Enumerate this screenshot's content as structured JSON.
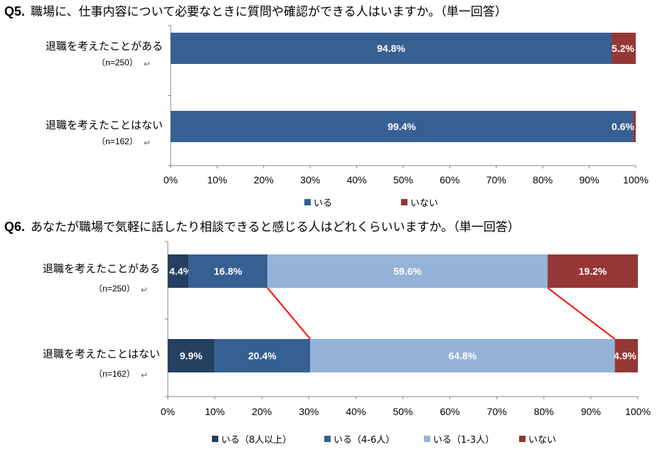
{
  "q5": {
    "number": "Q5.",
    "question": "職場に、仕事内容について必要なときに質問や確認ができる人はいますか。（単一回答）"
  },
  "q6": {
    "number": "Q6.",
    "question": "あなたが職場で気軽に話したり相談できると感じる人はどれくらいいますか。（単一回答）"
  },
  "colors": {
    "dark_navy": "#243f60",
    "blue": "#376092",
    "light_blue": "#95b3d7",
    "red": "#953735",
    "connector": "#ff0000",
    "axis": "#868686"
  },
  "chart_data": [
    {
      "id": "q5",
      "type": "bar",
      "orientation": "horizontal",
      "stacked": true,
      "categories": [
        "退職を考えたことがある",
        "退職を考えたことはない"
      ],
      "category_counts": [
        "（n=250）",
        "（n=162）"
      ],
      "series": [
        {
          "name": "いる",
          "values": [
            94.8,
            99.4
          ],
          "labels": [
            "94.8%",
            "99.4%"
          ],
          "color": "#376092"
        },
        {
          "name": "いない",
          "values": [
            5.2,
            0.6
          ],
          "labels": [
            "5.2%",
            "0.6%"
          ],
          "color": "#953735"
        }
      ],
      "xlim": [
        0,
        100
      ],
      "x_ticks": [
        "0%",
        "10%",
        "20%",
        "30%",
        "40%",
        "50%",
        "60%",
        "70%",
        "80%",
        "90%",
        "100%"
      ],
      "legend": "bottom",
      "grid": false
    },
    {
      "id": "q6",
      "type": "bar",
      "orientation": "horizontal",
      "stacked": true,
      "categories": [
        "退職を考えたことがある",
        "退職を考えたことはない"
      ],
      "category_counts": [
        "（n=250）",
        "（n=162）"
      ],
      "series": [
        {
          "name": "いる（8人以上）",
          "values": [
            4.4,
            9.9
          ],
          "labels": [
            "4.4%",
            "9.9%"
          ],
          "color": "#243f60"
        },
        {
          "name": "いる（4-6人）",
          "values": [
            16.8,
            20.4
          ],
          "labels": [
            "16.8%",
            "20.4%"
          ],
          "color": "#376092"
        },
        {
          "name": "いる（1-3人）",
          "values": [
            59.6,
            64.8
          ],
          "labels": [
            "59.6%",
            "64.8%"
          ],
          "color": "#95b3d7"
        },
        {
          "name": "いない",
          "values": [
            19.2,
            4.9
          ],
          "labels": [
            "19.2%",
            "4.9%"
          ],
          "color": "#953735"
        }
      ],
      "connector_lines": [
        {
          "after_series": 1
        },
        {
          "after_series": 2
        }
      ],
      "xlim": [
        0,
        100
      ],
      "x_ticks": [
        "0%",
        "10%",
        "20%",
        "30%",
        "40%",
        "50%",
        "60%",
        "70%",
        "80%",
        "90%",
        "100%"
      ],
      "legend": "bottom",
      "grid": false
    }
  ]
}
